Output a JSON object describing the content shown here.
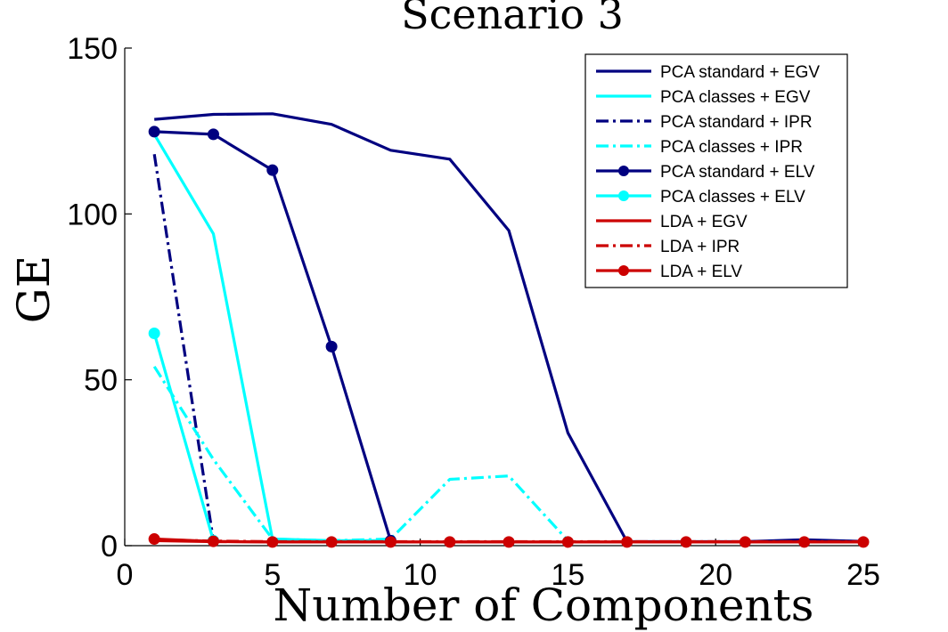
{
  "chart_data": {
    "type": "line",
    "title": "Scenario 3",
    "xlabel": "Number of Components",
    "ylabel": "GE",
    "xlim": [
      0,
      25
    ],
    "ylim": [
      0,
      150
    ],
    "xticks": [
      0,
      5,
      10,
      15,
      20,
      25
    ],
    "yticks": [
      0,
      50,
      100,
      150
    ],
    "grid": false,
    "legend_position": "top-right",
    "series": [
      {
        "name": "PCA standard + EGV",
        "color": "#000080",
        "style": "solid",
        "marker": "none",
        "x": [
          1,
          3,
          5,
          7,
          9,
          11,
          13,
          15,
          17,
          19,
          21,
          23,
          25
        ],
        "y": [
          128.5,
          130,
          130.2,
          127,
          119.2,
          116.5,
          95,
          34,
          1.2,
          1.2,
          1.2,
          1.8,
          1.3
        ]
      },
      {
        "name": "PCA classes + EGV",
        "color": "#00ffff",
        "style": "solid",
        "marker": "none",
        "x": [
          1,
          3,
          5,
          7,
          9
        ],
        "y": [
          124,
          94,
          2,
          1.5,
          1.5
        ]
      },
      {
        "name": "PCA standard + IPR",
        "color": "#000080",
        "style": "dashdot",
        "marker": "none",
        "x": [
          1,
          3
        ],
        "y": [
          118,
          1.5
        ]
      },
      {
        "name": "PCA classes + IPR",
        "color": "#00ffff",
        "style": "dashdot",
        "marker": "none",
        "x": [
          1,
          3,
          5,
          7,
          9,
          11,
          13,
          15
        ],
        "y": [
          54,
          26,
          2,
          1.5,
          2,
          20,
          21,
          1.5
        ]
      },
      {
        "name": "PCA standard + ELV",
        "color": "#000080",
        "style": "solid",
        "marker": "dot",
        "x": [
          1,
          3,
          5,
          7,
          9
        ],
        "y": [
          124.8,
          124,
          113.2,
          60,
          1.5
        ]
      },
      {
        "name": "PCA classes + ELV",
        "color": "#00ffff",
        "style": "solid",
        "marker": "dot",
        "x": [
          1,
          3
        ],
        "y": [
          64,
          1.5
        ]
      },
      {
        "name": "LDA + EGV",
        "color": "#cc0000",
        "style": "solid",
        "marker": "none",
        "x": [
          1,
          3,
          5,
          7,
          9,
          11,
          13,
          15,
          17,
          19,
          21,
          23,
          25
        ],
        "y": [
          1.5,
          1.2,
          1.1,
          1.1,
          1.1,
          1.1,
          1.1,
          1.1,
          1.1,
          1.1,
          1.1,
          1.1,
          1.1
        ]
      },
      {
        "name": "LDA + IPR",
        "color": "#cc0000",
        "style": "dashdot",
        "marker": "none",
        "x": [
          1,
          3,
          5,
          7,
          9,
          11,
          13,
          15,
          17,
          19,
          21,
          23,
          25
        ],
        "y": [
          1.8,
          1.4,
          1.2,
          1.2,
          1.2,
          1.2,
          1.2,
          1.2,
          1.2,
          1.2,
          1.2,
          1.2,
          1.2
        ]
      },
      {
        "name": "LDA + ELV",
        "color": "#cc0000",
        "style": "solid",
        "marker": "dot",
        "x": [
          1,
          3,
          5,
          7,
          9,
          11,
          13,
          15,
          17,
          19,
          21,
          23,
          25
        ],
        "y": [
          2,
          1.3,
          1.1,
          1.1,
          1.1,
          1.1,
          1.1,
          1.1,
          1.1,
          1.1,
          1.1,
          1.1,
          1.1
        ]
      }
    ]
  }
}
